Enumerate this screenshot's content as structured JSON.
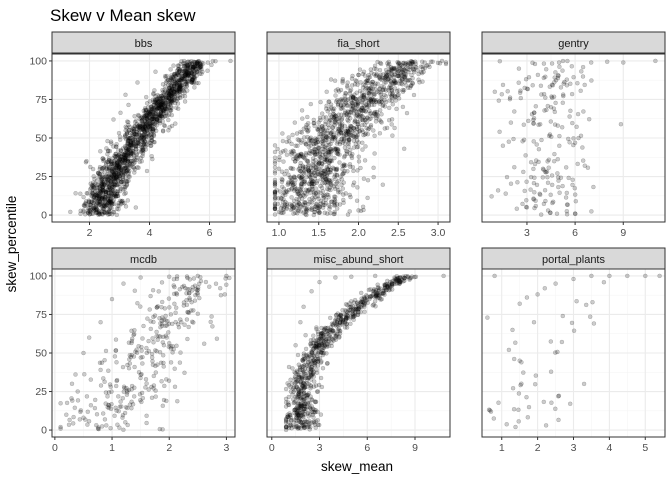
{
  "title": "Skew v Mean skew",
  "xlabel": "skew_mean",
  "ylabel": "skew_percentile",
  "colors": {
    "point": "#000000",
    "strip_fill": "#d9d9d9",
    "strip_border": "#333333",
    "grid_major": "#ebebeb",
    "grid_minor": "#f5f5f5",
    "panel_border": "#333333"
  },
  "chart_data": {
    "type": "scatter",
    "facet_layout": "3 columns x 2 rows, free x scales, shared y",
    "ylim": [
      0,
      100
    ],
    "y_ticks": [
      0,
      25,
      50,
      75,
      100
    ],
    "point_alpha": 0.2,
    "panels": [
      {
        "name": "bbs",
        "xlim": [
          0.75,
          6.85
        ],
        "x_ticks": [
          2,
          4,
          6
        ],
        "dist": {
          "kind": "rising",
          "n": 1500,
          "xmin": 1.1,
          "xmax": 6.7,
          "core": 2.3,
          "spread": 0.35,
          "shape": 0.75
        },
        "points": [
          [
            2.0,
            0.5
          ],
          [
            2.3,
            0.2
          ],
          [
            2.5,
            1.5
          ],
          [
            1.8,
            3
          ],
          [
            2.7,
            5
          ],
          [
            2.1,
            12
          ],
          [
            2.4,
            20
          ],
          [
            1.9,
            35
          ],
          [
            2.6,
            48
          ],
          [
            2.8,
            62
          ],
          [
            3.2,
            78
          ],
          [
            3.6,
            86
          ],
          [
            4.2,
            93
          ],
          [
            4.8,
            97
          ],
          [
            5.5,
            99
          ],
          [
            6.2,
            99.8
          ],
          [
            6.7,
            100
          ]
        ]
      },
      {
        "name": "fia_short",
        "xlim": [
          0.85,
          3.15
        ],
        "x_ticks": [
          1.0,
          1.5,
          2.0,
          2.5,
          3.0
        ],
        "x_tick_labels": [
          "1.0",
          "1.5",
          "2.0",
          "2.5",
          "3.0"
        ],
        "dist": {
          "kind": "rising",
          "n": 1300,
          "xmin": 0.95,
          "xmax": 3.1,
          "core": 1.35,
          "spread": 0.3,
          "shape": 0.5
        },
        "points": [
          [
            1.0,
            2
          ],
          [
            1.1,
            5
          ],
          [
            1.2,
            18
          ],
          [
            1.0,
            30
          ],
          [
            1.05,
            48
          ],
          [
            1.2,
            60
          ],
          [
            1.4,
            72
          ],
          [
            1.6,
            80
          ],
          [
            1.8,
            86
          ],
          [
            2.0,
            91
          ],
          [
            2.2,
            95
          ],
          [
            2.5,
            98
          ],
          [
            2.8,
            99.5
          ],
          [
            3.05,
            100
          ],
          [
            1.7,
            2
          ],
          [
            2.0,
            3
          ]
        ]
      },
      {
        "name": "gentry",
        "xlim": [
          0.2,
          11.6
        ],
        "x_ticks": [
          3,
          6,
          9
        ],
        "dist": {
          "kind": "bimodal",
          "n": 200,
          "xmin": 0.8,
          "xmax": 11.0,
          "core": 4.3,
          "spread": 1.4
        },
        "points": [
          [
            1.0,
            80
          ],
          [
            1.2,
            16
          ],
          [
            1.5,
            45
          ],
          [
            2.0,
            60
          ],
          [
            2.5,
            95
          ],
          [
            3.0,
            5
          ],
          [
            3.5,
            98
          ],
          [
            4.0,
            30
          ],
          [
            4.5,
            70
          ],
          [
            5.0,
            99
          ],
          [
            5.5,
            0.5
          ],
          [
            6.0,
            1
          ],
          [
            6.5,
            96
          ],
          [
            7.0,
            99
          ],
          [
            8.0,
            99.5
          ],
          [
            9.0,
            99
          ],
          [
            11.0,
            100
          ]
        ]
      },
      {
        "name": "mcdb",
        "xlim": [
          -0.05,
          3.15
        ],
        "x_ticks": [
          0,
          1,
          2,
          3
        ],
        "dist": {
          "kind": "rising",
          "n": 320,
          "xmin": 0.1,
          "xmax": 3.05,
          "core": 0.85,
          "spread": 0.45,
          "shape": 0.9
        },
        "points": [
          [
            0.1,
            2
          ],
          [
            0.2,
            10
          ],
          [
            0.3,
            30
          ],
          [
            0.4,
            25
          ],
          [
            0.5,
            50
          ],
          [
            0.6,
            60
          ],
          [
            0.8,
            70
          ],
          [
            1.0,
            85
          ],
          [
            1.2,
            95
          ],
          [
            1.5,
            99
          ],
          [
            2.0,
            99.5
          ],
          [
            2.5,
            100
          ],
          [
            3.0,
            100
          ],
          [
            0.9,
            3
          ],
          [
            0.5,
            8
          ]
        ]
      },
      {
        "name": "misc_abund_short",
        "xlim": [
          -0.3,
          11.2
        ],
        "x_ticks": [
          0,
          3,
          6,
          9
        ],
        "dist": {
          "kind": "rising",
          "n": 750,
          "xmin": 0.9,
          "xmax": 10.8,
          "core": 1.8,
          "spread": 0.55,
          "shape": 0.35
        },
        "points": [
          [
            0.9,
            2
          ],
          [
            1.0,
            10
          ],
          [
            1.2,
            25
          ],
          [
            1.3,
            40
          ],
          [
            1.5,
            55
          ],
          [
            1.8,
            70
          ],
          [
            2.0,
            80
          ],
          [
            2.5,
            90
          ],
          [
            3.0,
            96
          ],
          [
            4.0,
            99
          ],
          [
            5.0,
            99.5
          ],
          [
            6.5,
            100
          ],
          [
            10.8,
            100
          ],
          [
            2.0,
            3
          ]
        ]
      },
      {
        "name": "portal_plants",
        "xlim": [
          0.45,
          5.55
        ],
        "x_ticks": [
          1,
          2,
          3,
          4,
          5
        ],
        "dist": {
          "kind": "rising",
          "n": 45,
          "xmin": 0.6,
          "xmax": 5.4,
          "core": 1.8,
          "spread": 0.6,
          "shape": 0.45
        },
        "points": [
          [
            0.6,
            73
          ],
          [
            0.7,
            12
          ],
          [
            0.8,
            100
          ],
          [
            1.2,
            52
          ],
          [
            1.3,
            65
          ],
          [
            1.5,
            45
          ],
          [
            1.5,
            82
          ],
          [
            1.7,
            86
          ],
          [
            1.9,
            70
          ],
          [
            2.0,
            88
          ],
          [
            2.2,
            92
          ],
          [
            2.5,
            95
          ],
          [
            3.0,
            98
          ],
          [
            3.5,
            100
          ],
          [
            4.0,
            100
          ],
          [
            4.5,
            100
          ],
          [
            5.0,
            100
          ],
          [
            5.4,
            100
          ]
        ]
      }
    ]
  }
}
